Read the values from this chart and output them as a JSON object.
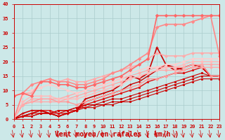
{
  "xlabel": "Vent moyen/en rafales ( km/h )",
  "bg_color": "#cce8e8",
  "grid_color": "#aacccc",
  "x_ticks": [
    0,
    1,
    2,
    3,
    4,
    5,
    6,
    7,
    8,
    9,
    10,
    11,
    12,
    13,
    14,
    15,
    16,
    17,
    18,
    19,
    20,
    21,
    22,
    23
  ],
  "y_ticks": [
    0,
    5,
    10,
    15,
    20,
    25,
    30,
    35,
    40
  ],
  "xlim": [
    0,
    23
  ],
  "ylim": [
    0,
    40
  ],
  "series": [
    {
      "x": [
        0,
        1,
        2,
        3,
        4,
        5,
        6,
        7,
        8,
        9,
        10,
        11,
        12,
        13,
        14,
        15,
        16,
        17,
        18,
        19,
        20,
        21,
        22,
        23
      ],
      "y": [
        0,
        1,
        1,
        2,
        2,
        2,
        3,
        3,
        4,
        4,
        5,
        5,
        6,
        6,
        7,
        8,
        9,
        10,
        11,
        12,
        13,
        14,
        14,
        14
      ],
      "color": "#cc0000",
      "lw": 0.8,
      "marker": "s",
      "ms": 1.5
    },
    {
      "x": [
        0,
        1,
        2,
        3,
        4,
        5,
        6,
        7,
        8,
        9,
        10,
        11,
        12,
        13,
        14,
        15,
        16,
        17,
        18,
        19,
        20,
        21,
        22,
        23
      ],
      "y": [
        0,
        1,
        1,
        2,
        2,
        3,
        3,
        4,
        4,
        5,
        5,
        6,
        6,
        7,
        8,
        9,
        10,
        11,
        12,
        13,
        14,
        15,
        15,
        15
      ],
      "color": "#cc0000",
      "lw": 0.8,
      "marker": "s",
      "ms": 1.5
    },
    {
      "x": [
        0,
        1,
        2,
        3,
        4,
        5,
        6,
        7,
        8,
        9,
        10,
        11,
        12,
        13,
        14,
        15,
        16,
        17,
        18,
        19,
        20,
        21,
        22,
        23
      ],
      "y": [
        0,
        1,
        2,
        2,
        2,
        3,
        3,
        4,
        5,
        5,
        6,
        7,
        7,
        8,
        9,
        10,
        11,
        12,
        13,
        14,
        15,
        16,
        15,
        15
      ],
      "color": "#cc0000",
      "lw": 0.8,
      "marker": "s",
      "ms": 1.5
    },
    {
      "x": [
        0,
        1,
        2,
        3,
        4,
        5,
        6,
        7,
        8,
        9,
        10,
        11,
        12,
        13,
        14,
        15,
        16,
        17,
        18,
        19,
        20,
        21,
        22,
        23
      ],
      "y": [
        0,
        1,
        2,
        3,
        3,
        2,
        2,
        3,
        5,
        6,
        7,
        8,
        9,
        10,
        11,
        13,
        14,
        15,
        16,
        16,
        17,
        18,
        15,
        15
      ],
      "color": "#dd1111",
      "lw": 1.0,
      "marker": "s",
      "ms": 1.8
    },
    {
      "x": [
        0,
        1,
        2,
        3,
        4,
        5,
        6,
        7,
        8,
        9,
        10,
        11,
        12,
        13,
        14,
        15,
        16,
        17,
        18,
        19,
        20,
        21,
        22,
        23
      ],
      "y": [
        0,
        1,
        2,
        3,
        2,
        1,
        2,
        3,
        6,
        7,
        8,
        9,
        10,
        12,
        13,
        15,
        17,
        19,
        18,
        17,
        18,
        19,
        15,
        15
      ],
      "color": "#cc0000",
      "lw": 1.0,
      "marker": "+",
      "ms": 3.0
    },
    {
      "x": [
        0,
        1,
        2,
        3,
        4,
        5,
        6,
        7,
        8,
        9,
        10,
        11,
        12,
        13,
        14,
        15,
        16,
        17,
        18,
        19,
        20,
        21,
        22,
        23
      ],
      "y": [
        0,
        2,
        3,
        3,
        2,
        1,
        2,
        3,
        7,
        8,
        9,
        10,
        12,
        15,
        14,
        16,
        25,
        19,
        17,
        18,
        19,
        18,
        15,
        15
      ],
      "color": "#cc0000",
      "lw": 1.2,
      "marker": "+",
      "ms": 3.5
    },
    {
      "x": [
        0,
        1,
        2,
        3,
        4,
        5,
        6,
        7,
        8,
        9,
        10,
        11,
        12,
        13,
        14,
        15,
        16,
        17,
        18,
        19,
        20,
        21,
        22,
        23
      ],
      "y": [
        0,
        5,
        6,
        7,
        7,
        6,
        6,
        5,
        6,
        7,
        8,
        9,
        10,
        11,
        12,
        14,
        14,
        15,
        16,
        17,
        18,
        19,
        15,
        15
      ],
      "color": "#ff9999",
      "lw": 1.0,
      "marker": "D",
      "ms": 2.0
    },
    {
      "x": [
        0,
        1,
        2,
        3,
        4,
        5,
        6,
        7,
        8,
        9,
        10,
        11,
        12,
        13,
        14,
        15,
        16,
        17,
        18,
        19,
        20,
        21,
        22,
        23
      ],
      "y": [
        1,
        5,
        6,
        6,
        6,
        6,
        7,
        8,
        9,
        10,
        11,
        12,
        13,
        14,
        15,
        16,
        17,
        17,
        17,
        17,
        18,
        18,
        18,
        18
      ],
      "color": "#ffaaaa",
      "lw": 1.0,
      "marker": "D",
      "ms": 2.0
    },
    {
      "x": [
        0,
        1,
        2,
        3,
        4,
        5,
        6,
        7,
        8,
        9,
        10,
        11,
        12,
        13,
        14,
        15,
        16,
        17,
        18,
        19,
        20,
        21,
        22,
        23
      ],
      "y": [
        1,
        5,
        7,
        7,
        7,
        7,
        8,
        9,
        10,
        11,
        12,
        13,
        14,
        15,
        16,
        17,
        18,
        18,
        18,
        18,
        19,
        19,
        19,
        19
      ],
      "color": "#ffaaaa",
      "lw": 1.0,
      "marker": "D",
      "ms": 2.0
    },
    {
      "x": [
        0,
        1,
        2,
        3,
        4,
        5,
        6,
        7,
        8,
        9,
        10,
        11,
        12,
        13,
        14,
        15,
        16,
        17,
        18,
        19,
        20,
        21,
        22,
        23
      ],
      "y": [
        0,
        6,
        8,
        8,
        8,
        7,
        7,
        7,
        8,
        9,
        10,
        11,
        12,
        14,
        15,
        16,
        17,
        18,
        18,
        19,
        20,
        20,
        20,
        20
      ],
      "color": "#ffbbbb",
      "lw": 1.1,
      "marker": "D",
      "ms": 2.0
    },
    {
      "x": [
        0,
        1,
        2,
        3,
        4,
        5,
        6,
        7,
        8,
        9,
        10,
        11,
        12,
        13,
        14,
        15,
        16,
        17,
        18,
        19,
        20,
        21,
        22,
        23
      ],
      "y": [
        0,
        8,
        10,
        11,
        12,
        11,
        10,
        9,
        10,
        11,
        12,
        13,
        14,
        16,
        17,
        18,
        18,
        19,
        19,
        20,
        21,
        21,
        21,
        21
      ],
      "color": "#ffcccc",
      "lw": 1.1,
      "marker": "D",
      "ms": 2.0
    },
    {
      "x": [
        0,
        1,
        2,
        3,
        4,
        5,
        6,
        7,
        8,
        9,
        10,
        11,
        12,
        13,
        14,
        15,
        16,
        17,
        18,
        19,
        20,
        21,
        22,
        23
      ],
      "y": [
        8,
        9,
        9,
        13,
        14,
        13,
        14,
        13,
        13,
        14,
        15,
        16,
        17,
        18,
        19,
        21,
        23,
        22,
        22,
        22,
        23,
        23,
        23,
        23
      ],
      "color": "#ffaaaa",
      "lw": 1.1,
      "marker": "D",
      "ms": 2.0
    },
    {
      "x": [
        0,
        1,
        2,
        3,
        4,
        5,
        6,
        7,
        8,
        9,
        10,
        11,
        12,
        13,
        14,
        15,
        16,
        17,
        18,
        19,
        20,
        21,
        22,
        23
      ],
      "y": [
        0,
        9,
        12,
        13,
        14,
        13,
        13,
        12,
        12,
        13,
        14,
        16,
        17,
        19,
        21,
        23,
        32,
        33,
        33,
        33,
        34,
        35,
        36,
        22
      ],
      "color": "#ff8888",
      "lw": 1.2,
      "marker": "D",
      "ms": 2.2
    },
    {
      "x": [
        0,
        1,
        2,
        3,
        4,
        5,
        6,
        7,
        8,
        9,
        10,
        11,
        12,
        13,
        14,
        15,
        16,
        17,
        18,
        19,
        20,
        21,
        22,
        23
      ],
      "y": [
        8,
        9,
        8,
        13,
        13,
        12,
        12,
        11,
        11,
        12,
        13,
        14,
        15,
        17,
        19,
        21,
        36,
        36,
        36,
        36,
        36,
        36,
        36,
        36
      ],
      "color": "#ff6666",
      "lw": 1.2,
      "marker": "D",
      "ms": 2.2
    }
  ],
  "tick_label_color": "#cc0000",
  "axis_label_color": "#cc0000",
  "tick_fontsize": 5.0,
  "xlabel_fontsize": 7.0
}
